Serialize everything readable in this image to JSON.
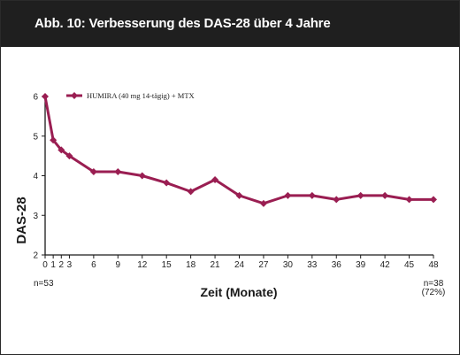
{
  "header": {
    "title": "Abb. 10:  Verbesserung des DAS-28 über 4 Jahre"
  },
  "colors": {
    "header_bg": "#1f1f1f",
    "series": "#9a1e52",
    "axis": "#1a1a1a"
  },
  "chart_data": {
    "type": "line",
    "xlabel": "Zeit (Monate)",
    "ylabel": "DAS-28",
    "ylim": [
      2,
      6
    ],
    "yticks": [
      2,
      3,
      4,
      5,
      6
    ],
    "xlim": [
      0,
      48
    ],
    "xticks": [
      0,
      1,
      2,
      3,
      6,
      9,
      12,
      15,
      18,
      21,
      24,
      27,
      30,
      33,
      36,
      39,
      42,
      45,
      48
    ],
    "grid": false,
    "legend_position": "top-left",
    "series": [
      {
        "name": "HUMIRA (40 mg 14-tägig) + MTX",
        "x": [
          0,
          1,
          2,
          3,
          6,
          9,
          12,
          15,
          18,
          21,
          24,
          27,
          30,
          33,
          36,
          39,
          42,
          45,
          48
        ],
        "y": [
          6.0,
          4.9,
          4.65,
          4.5,
          4.1,
          4.1,
          4.0,
          3.82,
          3.6,
          3.9,
          3.5,
          3.3,
          3.5,
          3.5,
          3.4,
          3.5,
          3.5,
          3.4,
          3.4
        ]
      }
    ],
    "annotations": {
      "start_n": "n=53",
      "end_n": "n=38",
      "end_pct": "(72%)"
    }
  }
}
